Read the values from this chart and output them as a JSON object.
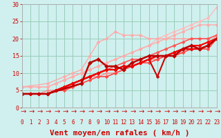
{
  "xlabel": "Vent moyen/en rafales ( km/h )",
  "xlim": [
    0,
    23
  ],
  "ylim": [
    0,
    30
  ],
  "xticks": [
    0,
    1,
    2,
    3,
    4,
    5,
    6,
    7,
    8,
    9,
    10,
    11,
    12,
    13,
    14,
    15,
    16,
    17,
    18,
    19,
    20,
    21,
    22,
    23
  ],
  "yticks": [
    0,
    5,
    10,
    15,
    20,
    25,
    30
  ],
  "background_color": "#cff0ee",
  "grid_color": "#99ccbb",
  "series": [
    {
      "x": [
        0,
        1,
        2,
        3,
        4,
        5,
        6,
        7,
        8,
        9,
        10,
        11,
        12,
        13,
        14,
        15,
        16,
        17,
        18,
        19,
        20,
        21,
        22,
        23
      ],
      "y": [
        6,
        6,
        6,
        6,
        7,
        8,
        9,
        10,
        11,
        12,
        13,
        14,
        15,
        16,
        17,
        18,
        20,
        21,
        22,
        23,
        24,
        25,
        26,
        29
      ],
      "color": "#ffbbbb",
      "lw": 1.0,
      "marker": "D",
      "ms": 2.5
    },
    {
      "x": [
        0,
        1,
        2,
        3,
        4,
        5,
        6,
        7,
        8,
        9,
        10,
        11,
        12,
        13,
        14,
        15,
        16,
        17,
        18,
        19,
        20,
        21,
        22,
        23
      ],
      "y": [
        6,
        6,
        6,
        6,
        7,
        8,
        9,
        10,
        11,
        12,
        13,
        14,
        15,
        16,
        17,
        18,
        19,
        20,
        21,
        22,
        23,
        24,
        24,
        24
      ],
      "color": "#ffaaaa",
      "lw": 1.0,
      "marker": "D",
      "ms": 2.5
    },
    {
      "x": [
        0,
        3,
        5,
        6,
        7,
        8,
        9,
        10,
        11,
        12,
        13,
        14,
        15,
        16,
        17,
        18,
        19,
        20,
        21,
        22,
        23
      ],
      "y": [
        6,
        7,
        9,
        10,
        11,
        15,
        19,
        20,
        22,
        21,
        21,
        21,
        20,
        20,
        20,
        20,
        20,
        20,
        20,
        20,
        21
      ],
      "color": "#ffaaaa",
      "lw": 1.0,
      "marker": "D",
      "ms": 2.5
    },
    {
      "x": [
        0,
        1,
        2,
        3,
        4,
        5,
        6,
        7,
        8,
        9,
        10,
        11,
        12,
        13,
        14,
        15,
        16,
        17,
        18,
        19,
        20,
        21,
        22,
        23
      ],
      "y": [
        4,
        4,
        4,
        5,
        5,
        6,
        7,
        8,
        9,
        9,
        10,
        10,
        11,
        12,
        13,
        14,
        14,
        15,
        15,
        16,
        17,
        17,
        18,
        21
      ],
      "color": "#ff8888",
      "lw": 1.0,
      "marker": "D",
      "ms": 2.5
    },
    {
      "x": [
        0,
        1,
        2,
        3,
        4,
        5,
        6,
        7,
        8,
        9,
        10,
        11,
        12,
        13,
        14,
        15,
        16,
        17,
        18,
        19,
        20,
        21,
        22,
        23
      ],
      "y": [
        4,
        4,
        4,
        4,
        5,
        6,
        7,
        8,
        9,
        10,
        11,
        12,
        13,
        14,
        14,
        15,
        16,
        17,
        18,
        19,
        20,
        20,
        20,
        21
      ],
      "color": "#ff5555",
      "lw": 1.2,
      "marker": "D",
      "ms": 2.5
    },
    {
      "x": [
        0,
        1,
        2,
        3,
        4,
        5,
        6,
        7,
        8,
        9,
        10,
        11,
        12,
        13,
        14,
        15,
        16,
        17,
        18,
        19,
        20,
        21,
        22,
        23
      ],
      "y": [
        4,
        4,
        4,
        4,
        5,
        5,
        6,
        7,
        8,
        9,
        9,
        10,
        11,
        12,
        13,
        13,
        14,
        15,
        15,
        16,
        17,
        17,
        17,
        20
      ],
      "color": "#ff4444",
      "lw": 1.2,
      "marker": "D",
      "ms": 2.5
    },
    {
      "x": [
        0,
        1,
        2,
        3,
        4,
        5,
        6,
        7,
        8,
        9,
        10,
        11,
        12,
        13,
        14,
        15,
        16,
        17,
        18,
        19,
        20,
        21,
        22,
        23
      ],
      "y": [
        4,
        4,
        4,
        4,
        5,
        6,
        7,
        8,
        9,
        10,
        11,
        11,
        12,
        12,
        13,
        14,
        15,
        15,
        16,
        17,
        18,
        18,
        19,
        20
      ],
      "color": "#ff2222",
      "lw": 1.2,
      "marker": "D",
      "ms": 2.5
    },
    {
      "x": [
        0,
        1,
        2,
        3,
        4,
        5,
        6,
        7,
        8,
        9,
        10,
        11,
        12,
        13,
        14,
        15,
        16,
        17,
        18,
        19,
        20,
        21,
        22,
        23
      ],
      "y": [
        4,
        4,
        4,
        4,
        5,
        6,
        7,
        8,
        9,
        10,
        11,
        11,
        12,
        12,
        13,
        14,
        9,
        15,
        16,
        17,
        17,
        17,
        18,
        20
      ],
      "color": "#cc0000",
      "lw": 1.5,
      "marker": "D",
      "ms": 2.5
    },
    {
      "x": [
        0,
        1,
        2,
        3,
        4,
        5,
        6,
        7,
        8,
        9,
        10,
        11,
        12,
        13,
        14,
        15,
        16,
        17,
        18,
        19,
        20,
        21,
        22,
        23
      ],
      "y": [
        4,
        4,
        4,
        4,
        5,
        6,
        7,
        8,
        9,
        10,
        11,
        11,
        12,
        12,
        13,
        14,
        15,
        15,
        16,
        17,
        18,
        18,
        19,
        20
      ],
      "color": "#ff0000",
      "lw": 1.5,
      "marker": "D",
      "ms": 2.5
    },
    {
      "x": [
        0,
        1,
        2,
        3,
        4,
        5,
        6,
        7,
        8,
        9,
        10,
        11,
        12,
        13,
        14,
        15,
        16,
        17,
        18,
        19,
        20,
        21,
        22,
        23
      ],
      "y": [
        4,
        4,
        4,
        4,
        5,
        6,
        7,
        8,
        9,
        10,
        11,
        11,
        12,
        12,
        13,
        14,
        15,
        15,
        16,
        17,
        17,
        17,
        18,
        20
      ],
      "color": "#ee0000",
      "lw": 1.5,
      "marker": "D",
      "ms": 2.5
    },
    {
      "x": [
        0,
        3,
        7,
        8,
        9,
        10,
        11,
        12,
        13,
        14,
        15,
        16,
        17,
        18,
        19,
        20,
        21,
        22,
        23
      ],
      "y": [
        4,
        4,
        7,
        13,
        14,
        12,
        12,
        11,
        13,
        14,
        15,
        15,
        15,
        15,
        17,
        18,
        17,
        18,
        20
      ],
      "color": "#bb0000",
      "lw": 1.8,
      "marker": "D",
      "ms": 3.0
    }
  ],
  "xlabel_color": "#cc0000",
  "xlabel_fontsize": 8,
  "tick_fontsize": 6,
  "tick_color": "#cc0000",
  "arrow_symbol": "↗"
}
